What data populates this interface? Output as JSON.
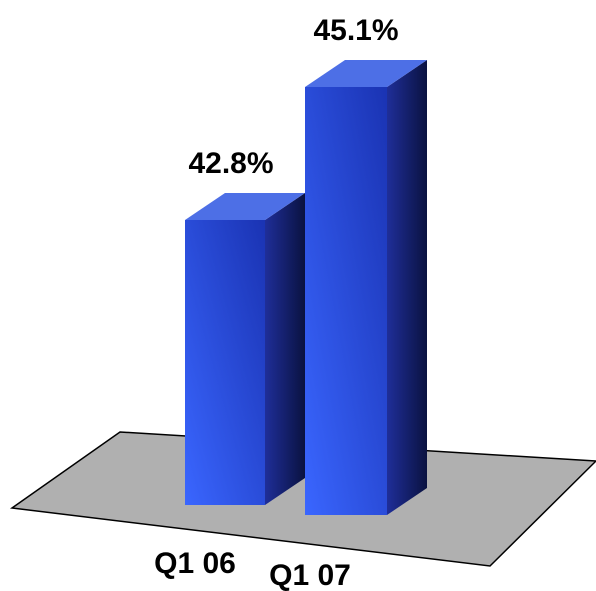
{
  "chart_data": {
    "type": "bar",
    "style": "3d-column",
    "categories": [
      "Q1 06",
      "Q1 07"
    ],
    "values": [
      42.8,
      45.1
    ],
    "data_labels": [
      "42.8%",
      "45.1%"
    ],
    "title": "",
    "xlabel": "",
    "ylabel": "",
    "grid": false,
    "legend": "none",
    "colors": {
      "bar_front_light": "#3a66ff",
      "bar_front_dark": "#1a33b3",
      "bar_top": "#4d6fe6",
      "bar_side_light": "#1f2e99",
      "bar_side_dark": "#0a1240",
      "floor": "#b0b0b0",
      "floor_edge": "#000000"
    }
  }
}
